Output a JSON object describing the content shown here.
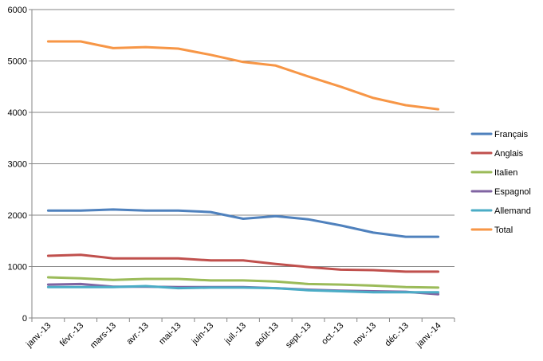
{
  "chart_data": {
    "type": "line",
    "title": "",
    "xlabel": "",
    "ylabel": "",
    "ylim": [
      0,
      6000
    ],
    "yticks": [
      0,
      1000,
      2000,
      3000,
      4000,
      5000,
      6000
    ],
    "grid": true,
    "legend_position": "right",
    "categories": [
      "janv.-13",
      "févr.-13",
      "mars-13",
      "avr.-13",
      "mai-13",
      "juin-13",
      "juil.-13",
      "août-13",
      "sept.-13",
      "oct.-13",
      "nov.-13",
      "déc.-13",
      "janv.-14"
    ],
    "series": [
      {
        "name": "Français",
        "color": "#4F81BD",
        "values": [
          2090,
          2090,
          2110,
          2090,
          2090,
          2060,
          1930,
          1980,
          1920,
          1800,
          1660,
          1580,
          1580
        ]
      },
      {
        "name": "Anglais",
        "color": "#C0504D",
        "values": [
          1210,
          1230,
          1160,
          1160,
          1160,
          1120,
          1120,
          1050,
          990,
          940,
          930,
          900,
          900
        ]
      },
      {
        "name": "Italien",
        "color": "#9BBB59",
        "values": [
          790,
          770,
          740,
          760,
          760,
          730,
          730,
          710,
          660,
          650,
          630,
          600,
          590
        ]
      },
      {
        "name": "Espagnol",
        "color": "#8064A2",
        "values": [
          650,
          660,
          610,
          610,
          600,
          600,
          600,
          580,
          550,
          530,
          520,
          510,
          460
        ]
      },
      {
        "name": "Allemand",
        "color": "#4BACC6",
        "values": [
          600,
          600,
          600,
          620,
          580,
          590,
          590,
          580,
          540,
          520,
          500,
          500,
          500
        ]
      },
      {
        "name": "Total",
        "color": "#F79646",
        "values": [
          5380,
          5380,
          5250,
          5270,
          5240,
          5120,
          4980,
          4910,
          4700,
          4500,
          4280,
          4140,
          4060
        ]
      }
    ]
  }
}
